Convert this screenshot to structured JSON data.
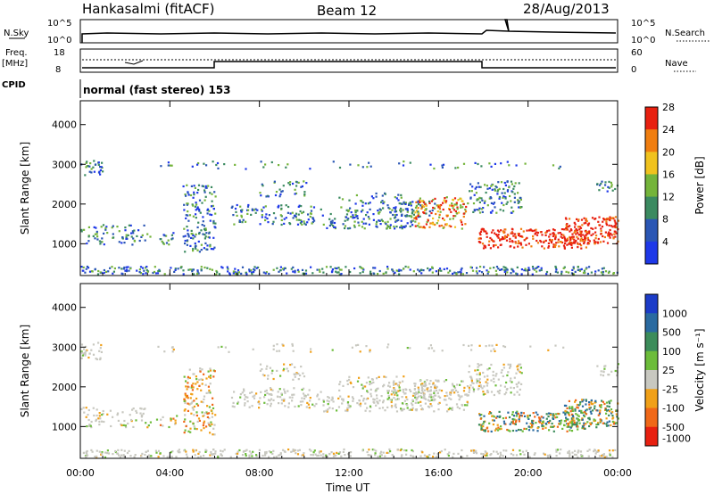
{
  "header": {
    "station": "Hankasalmi (fitACF)",
    "beam": "Beam 12",
    "date": "28/Aug/2013"
  },
  "strip_panels": {
    "nsky_label": "N.Sky",
    "nsky_ticks": [
      "10^5",
      "10^0"
    ],
    "nsearch_label": "N.Search",
    "nsearch_ticks": [
      "10^5",
      "10^0"
    ],
    "freq_label": "Freq.",
    "freq_unit": "[MHz]",
    "freq_ticks": [
      "18",
      "8"
    ],
    "nave_label": "Nave",
    "nave_ticks": [
      "60",
      "0"
    ],
    "cpid_label": "CPID",
    "cpid_value": "normal (fast stereo) 153"
  },
  "chart_data": [
    {
      "type": "heatmap",
      "name": "power",
      "ylabel": "Slant Range [km]",
      "yticks": [
        1000,
        2000,
        3000,
        4000
      ],
      "ylim": [
        200,
        4600
      ],
      "colorbar_label": "Power [dB]",
      "colorbar_ticks": [
        "4",
        "8",
        "12",
        "16",
        "20",
        "24",
        "28"
      ],
      "colorbar_colors": [
        "#1e38e8",
        "#2a56b4",
        "#3b8a60",
        "#74b43a",
        "#f0c21e",
        "#f07e10",
        "#e82010"
      ]
    },
    {
      "type": "heatmap",
      "name": "velocity",
      "ylabel": "Slant Range [km]",
      "yticks": [
        1000,
        2000,
        3000,
        4000
      ],
      "ylim": [
        200,
        4600
      ],
      "colorbar_label": "Velocity [m s⁻¹]",
      "colorbar_ticks": [
        "1000",
        "500",
        "100",
        "25",
        "-25",
        "-100",
        "-500",
        "-1000"
      ],
      "colorbar_colors": [
        "#1c3cc8",
        "#2a6aa0",
        "#3c8c5a",
        "#6cbc3a",
        "#c8c8c0",
        "#f0a018",
        "#f06818",
        "#e82010"
      ]
    }
  ],
  "xaxis": {
    "label": "Time UT",
    "ticks": [
      "00:00",
      "04:00",
      "08:00",
      "12:00",
      "16:00",
      "20:00",
      "00:00"
    ]
  }
}
